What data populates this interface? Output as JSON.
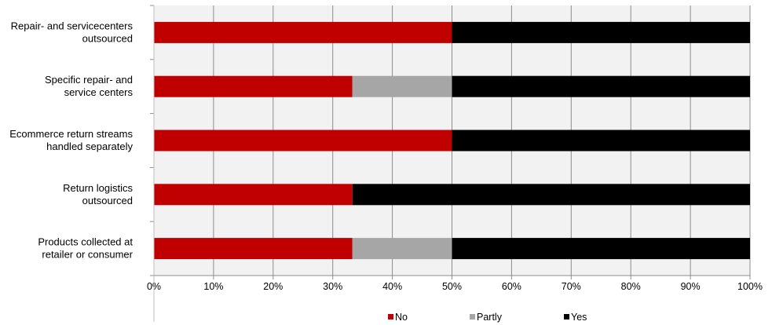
{
  "chart_data": {
    "type": "bar",
    "orientation": "horizontal",
    "stacked": true,
    "percent_stacked": true,
    "categories": [
      [
        "Repair- and servicecenters",
        "outsourced"
      ],
      [
        "Specific repair- and",
        "service centers"
      ],
      [
        "Ecommerce return streams",
        "handled separately"
      ],
      [
        "Return logistics",
        "outsourced"
      ],
      [
        "Products collected at",
        "retailer or consumer"
      ]
    ],
    "series": [
      {
        "name": "No",
        "color": "#c00000",
        "values": [
          50,
          33.3,
          50,
          33.3,
          33.3
        ]
      },
      {
        "name": "Partly",
        "color": "#a6a6a6",
        "values": [
          0,
          16.7,
          0,
          0,
          16.7
        ]
      },
      {
        "name": "Yes",
        "color": "#000000",
        "values": [
          50,
          50,
          50,
          66.7,
          50
        ]
      }
    ],
    "x_ticks": [
      "0%",
      "10%",
      "20%",
      "30%",
      "40%",
      "50%",
      "60%",
      "70%",
      "80%",
      "90%",
      "100%"
    ],
    "xlim": [
      0,
      100
    ],
    "grid": true,
    "plot_background": "#f2f2f2",
    "grid_color": "#8c8c8c",
    "legend_position": "bottom"
  }
}
